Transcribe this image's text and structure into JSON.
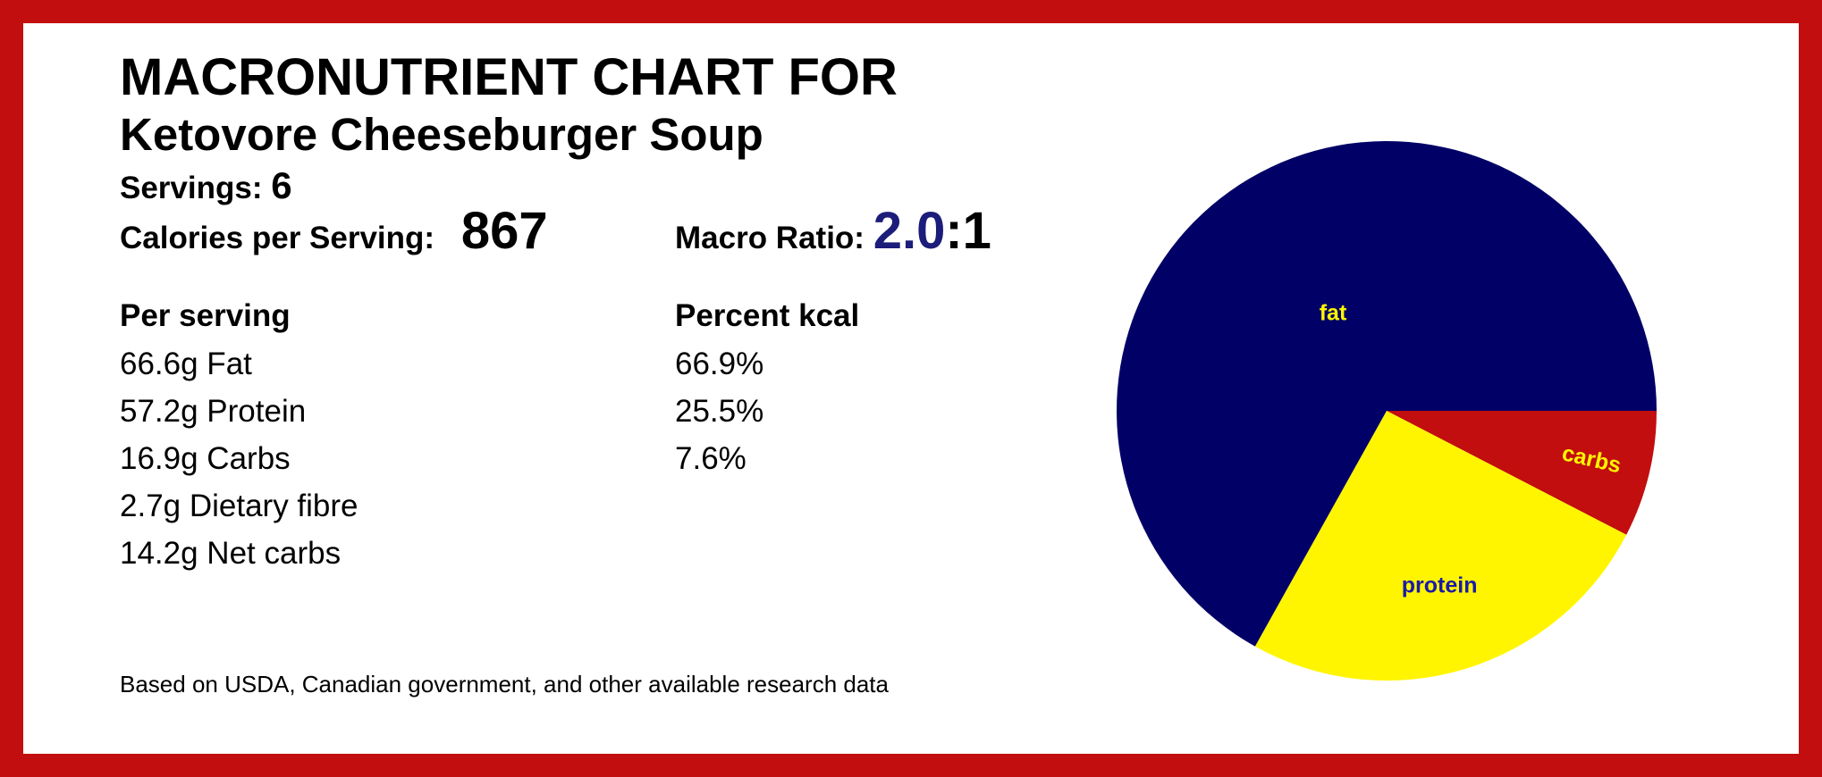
{
  "header": {
    "title": "MACRONUTRIENT CHART FOR",
    "recipe_name": "Ketovore Cheeseburger Soup"
  },
  "summary": {
    "servings_label": "Servings:",
    "servings_value": "6",
    "calories_label": "Calories per Serving:",
    "calories_value": "867",
    "ratio_label": "Macro Ratio:",
    "ratio_fat": "2.0",
    "ratio_rest": ":1"
  },
  "per_serving": {
    "heading": "Per serving",
    "rows": [
      "66.6g Fat",
      "57.2g Protein",
      "16.9g Carbs",
      "2.7g Dietary fibre",
      "14.2g Net carbs"
    ]
  },
  "percent_kcal": {
    "heading": "Percent kcal",
    "rows": [
      "66.9%",
      "25.5%",
      "7.6%"
    ]
  },
  "footnote": "Based on USDA, Canadian government, and other available research data",
  "colors": {
    "border": "#c20e0e",
    "fat": "#000066",
    "protein": "#fff500",
    "carbs": "#c20e0e",
    "fat_label": "#fff500",
    "protein_label": "#1a1aa6",
    "carbs_label": "#fff500"
  },
  "chart_data": {
    "type": "pie",
    "categories": [
      "fat",
      "protein",
      "carbs"
    ],
    "values": [
      66.9,
      25.5,
      7.6
    ],
    "start_angle_deg": 0,
    "direction": "clockwise",
    "title": ""
  }
}
